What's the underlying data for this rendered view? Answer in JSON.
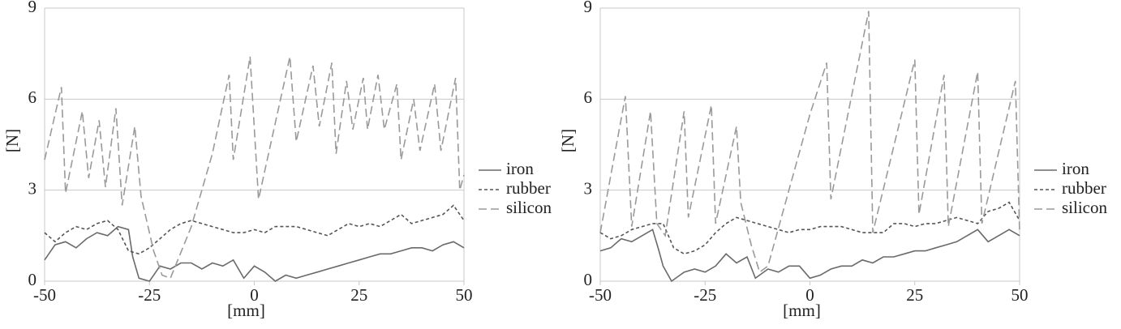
{
  "chart_data": [
    {
      "type": "line",
      "xlabel": "[mm]",
      "ylabel": "[N]",
      "xlim": [
        -50,
        50
      ],
      "ylim": [
        0,
        9
      ],
      "xticks": [
        -50,
        -25,
        0,
        25,
        50
      ],
      "yticks": [
        0,
        3,
        6,
        9
      ],
      "grid": true,
      "legend": "right",
      "series": [
        {
          "name": "iron",
          "color": "#6a6a6a",
          "dash": "solid",
          "x": [
            -50,
            -47.5,
            -45,
            -42.5,
            -40,
            -37.5,
            -35,
            -32.5,
            -30,
            -29,
            -27.5,
            -25,
            -22.5,
            -20,
            -17.5,
            -15,
            -12.5,
            -10,
            -7.5,
            -5,
            -2.5,
            0,
            2.5,
            5,
            7.5,
            10,
            12.5,
            15,
            17.5,
            20,
            22.5,
            25,
            27.5,
            30,
            32.5,
            35,
            37.5,
            40,
            42.5,
            45,
            47.5,
            50
          ],
          "values": [
            0.7,
            1.2,
            1.3,
            1.1,
            1.4,
            1.6,
            1.5,
            1.8,
            1.7,
            0.8,
            0.1,
            0.0,
            0.5,
            0.4,
            0.6,
            0.6,
            0.4,
            0.6,
            0.5,
            0.7,
            0.1,
            0.5,
            0.3,
            0.0,
            0.2,
            0.1,
            0.2,
            0.3,
            0.4,
            0.5,
            0.6,
            0.7,
            0.8,
            0.9,
            0.9,
            1.0,
            1.1,
            1.1,
            1.0,
            1.2,
            1.3,
            1.1
          ]
        },
        {
          "name": "rubber",
          "color": "#555555",
          "dash": "short",
          "x": [
            -50,
            -47.5,
            -45,
            -42.5,
            -40,
            -37.5,
            -35,
            -32.5,
            -30,
            -27.5,
            -25,
            -22.5,
            -20,
            -17.5,
            -15,
            -12.5,
            -10,
            -7.5,
            -5,
            -2.5,
            0,
            2.5,
            5,
            7.5,
            10,
            12.5,
            15,
            17.5,
            20,
            22.5,
            25,
            27.5,
            30,
            32.5,
            35,
            37.5,
            40,
            42.5,
            45,
            47.5,
            50
          ],
          "values": [
            1.6,
            1.3,
            1.6,
            1.8,
            1.7,
            1.9,
            2.0,
            1.7,
            1.0,
            0.9,
            1.1,
            1.4,
            1.7,
            1.9,
            2.0,
            1.9,
            1.8,
            1.7,
            1.6,
            1.6,
            1.7,
            1.6,
            1.8,
            1.8,
            1.8,
            1.7,
            1.6,
            1.5,
            1.7,
            1.9,
            1.8,
            1.9,
            1.8,
            2.0,
            2.2,
            1.9,
            2.0,
            2.1,
            2.2,
            2.5,
            2.0
          ]
        },
        {
          "name": "silicon",
          "color": "#9a9a9a",
          "dash": "long",
          "x": [
            -50,
            -46,
            -45,
            -41,
            -39.5,
            -37,
            -35.5,
            -33,
            -31.5,
            -28.5,
            -27,
            -24,
            -22,
            -20,
            -15,
            -10,
            -6,
            -5,
            -1,
            1,
            8.5,
            10,
            14,
            15.5,
            18.5,
            19.5,
            22,
            23.5,
            26,
            27,
            29.5,
            31,
            34,
            35,
            38,
            39.5,
            43,
            44.5,
            48,
            49,
            50
          ],
          "values": [
            4.0,
            6.4,
            2.9,
            5.6,
            3.4,
            5.3,
            3.1,
            5.7,
            2.5,
            5.1,
            2.8,
            1.0,
            0.2,
            0.1,
            1.8,
            4.2,
            6.8,
            4.0,
            7.4,
            2.7,
            7.4,
            4.6,
            7.1,
            5.1,
            7.2,
            4.2,
            6.6,
            5.0,
            6.7,
            5.0,
            6.8,
            5.0,
            6.5,
            4.0,
            6.0,
            4.3,
            6.5,
            4.3,
            6.7,
            3.0,
            3.5
          ]
        }
      ]
    },
    {
      "type": "line",
      "xlabel": "[mm]",
      "ylabel": "[N]",
      "xlim": [
        -50,
        50
      ],
      "ylim": [
        0,
        9
      ],
      "xticks": [
        -50,
        -25,
        0,
        25,
        50
      ],
      "yticks": [
        0,
        3,
        6,
        9
      ],
      "grid": true,
      "legend": "right",
      "series": [
        {
          "name": "iron",
          "color": "#6a6a6a",
          "dash": "solid",
          "x": [
            -50,
            -47.5,
            -45,
            -42.5,
            -40,
            -37.5,
            -36,
            -35,
            -33,
            -30,
            -27.5,
            -25,
            -22.5,
            -20,
            -17.5,
            -15,
            -13,
            -10,
            -7.5,
            -5,
            -2.5,
            0,
            2.5,
            5,
            7.5,
            10,
            12.5,
            15,
            17.5,
            20,
            22.5,
            25,
            27.5,
            30,
            32.5,
            35,
            37.5,
            40,
            42.5,
            45,
            47.5,
            50
          ],
          "values": [
            1.0,
            1.1,
            1.4,
            1.3,
            1.5,
            1.7,
            1.0,
            0.5,
            0.0,
            0.3,
            0.4,
            0.3,
            0.5,
            0.9,
            0.6,
            0.8,
            0.1,
            0.4,
            0.3,
            0.5,
            0.5,
            0.1,
            0.2,
            0.4,
            0.5,
            0.5,
            0.7,
            0.6,
            0.8,
            0.8,
            0.9,
            1.0,
            1.0,
            1.1,
            1.2,
            1.3,
            1.5,
            1.7,
            1.3,
            1.5,
            1.7,
            1.5
          ]
        },
        {
          "name": "rubber",
          "color": "#555555",
          "dash": "short",
          "x": [
            -50,
            -47.5,
            -45,
            -42.5,
            -40,
            -37.5,
            -35,
            -32.5,
            -30,
            -27.5,
            -25,
            -22.5,
            -20,
            -17.5,
            -15,
            -12.5,
            -10,
            -7.5,
            -5,
            -2.5,
            0,
            2.5,
            5,
            7.5,
            10,
            12.5,
            15,
            17.5,
            20,
            22.5,
            25,
            27.5,
            30,
            32.5,
            35,
            37.5,
            40,
            42.5,
            45,
            47.5,
            50
          ],
          "values": [
            1.6,
            1.4,
            1.5,
            1.7,
            1.8,
            1.9,
            1.9,
            1.1,
            0.9,
            1.0,
            1.2,
            1.6,
            1.9,
            2.1,
            2.0,
            1.9,
            1.8,
            1.7,
            1.6,
            1.7,
            1.7,
            1.8,
            1.8,
            1.8,
            1.7,
            1.6,
            1.6,
            1.6,
            1.9,
            1.9,
            1.8,
            1.9,
            1.9,
            2.0,
            2.1,
            2.0,
            1.9,
            2.3,
            2.4,
            2.6,
            2.0
          ]
        },
        {
          "name": "silicon",
          "color": "#9a9a9a",
          "dash": "long",
          "x": [
            -50,
            -44,
            -42.5,
            -38,
            -36.5,
            -34.5,
            -30,
            -29,
            -23.5,
            -22.5,
            -17.5,
            -16.5,
            -14,
            -12,
            -10,
            -5,
            0,
            4,
            5,
            14,
            15,
            25,
            26,
            32,
            33,
            40,
            41,
            49,
            50
          ],
          "values": [
            1.6,
            6.1,
            1.8,
            5.6,
            1.9,
            1.5,
            5.6,
            2.1,
            5.8,
            1.9,
            5.1,
            2.6,
            1.2,
            0.3,
            0.5,
            3.0,
            5.5,
            7.2,
            2.7,
            8.9,
            1.6,
            7.3,
            2.2,
            6.8,
            1.8,
            6.9,
            1.9,
            6.6,
            1.6
          ]
        }
      ]
    }
  ]
}
